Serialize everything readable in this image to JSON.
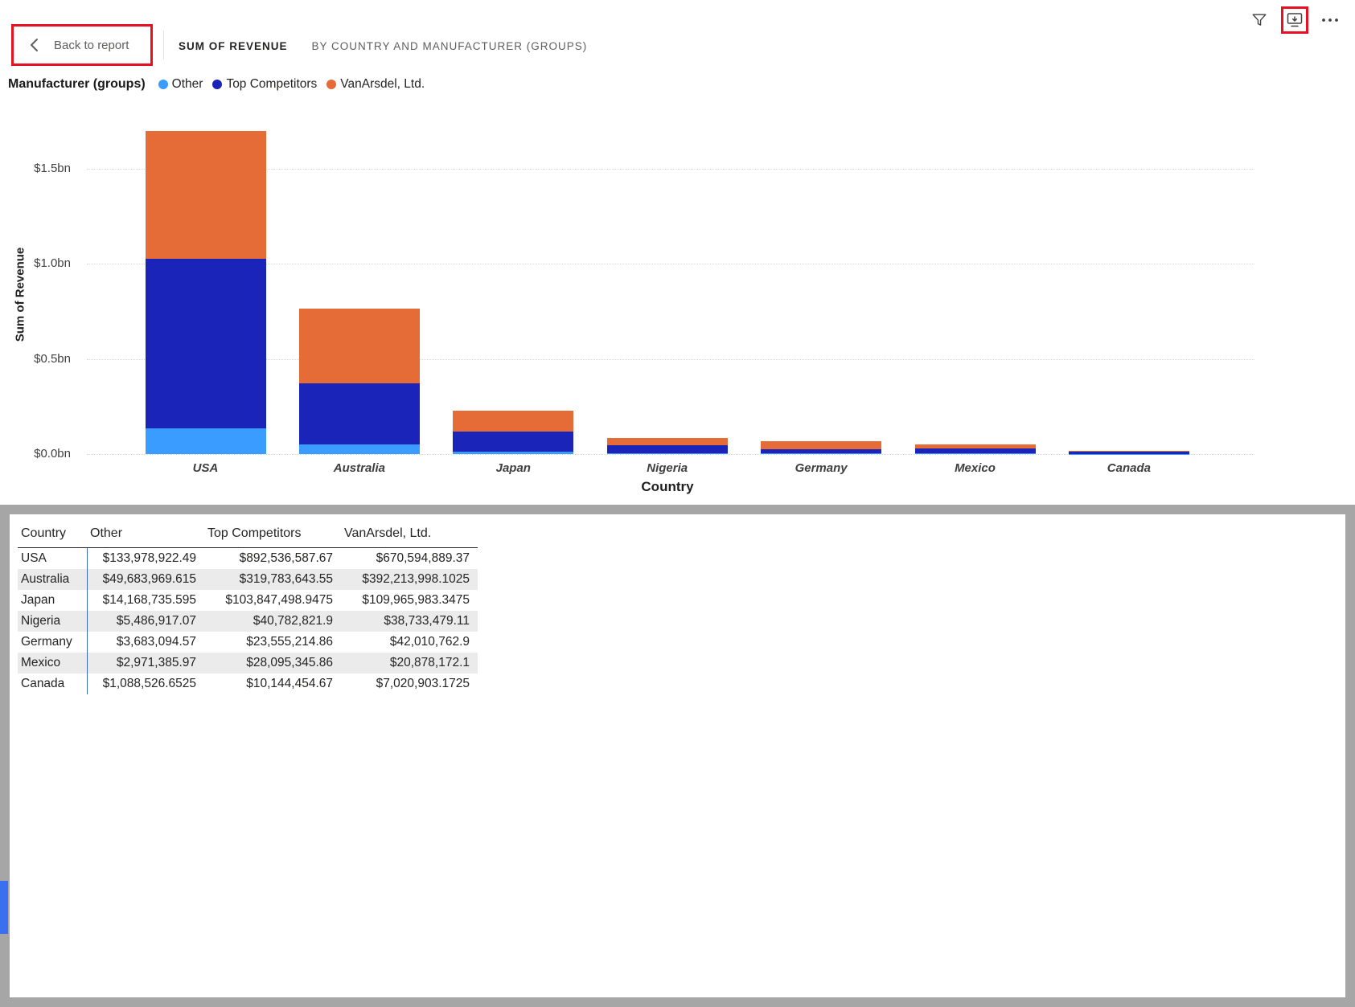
{
  "colors": {
    "annotation_red": "#E81123",
    "panel_gray": "#A6A6A6",
    "scrollbar_blue": "#3A6FF0"
  },
  "header": {
    "back_label": "Back to report",
    "title": "SUM OF REVENUE",
    "subtitle": "BY COUNTRY AND MANUFACTURER (GROUPS)"
  },
  "legend": {
    "title": "Manufacturer (groups)",
    "items": [
      {
        "label": "Other",
        "color": "#3B9CFF"
      },
      {
        "label": "Top Competitors",
        "color": "#1B24B8"
      },
      {
        "label": "VanArsdel, Ltd.",
        "color": "#E66C37"
      }
    ]
  },
  "chart_data": {
    "type": "bar",
    "stacked": true,
    "title": "Sum of Revenue by Country and Manufacturer (groups)",
    "xlabel": "Country",
    "ylabel": "Sum of Revenue",
    "unit": "billions USD",
    "ylim": [
      0,
      1.75
    ],
    "grid": true,
    "legend_position": "top",
    "categories": [
      "USA",
      "Australia",
      "Japan",
      "Nigeria",
      "Germany",
      "Mexico",
      "Canada"
    ],
    "series": [
      {
        "name": "Other",
        "color": "#3B9CFF",
        "values": [
          0.13398,
          0.04968,
          0.01417,
          0.00549,
          0.00368,
          0.00297,
          0.00109
        ]
      },
      {
        "name": "Top Competitors",
        "color": "#1B24B8",
        "values": [
          0.89254,
          0.31978,
          0.10385,
          0.04078,
          0.02356,
          0.0281,
          0.01014
        ]
      },
      {
        "name": "VanArsdel, Ltd.",
        "color": "#E66C37",
        "values": [
          0.67059,
          0.39221,
          0.10997,
          0.03873,
          0.04201,
          0.02088,
          0.00702
        ]
      }
    ],
    "yticks": [
      {
        "label": "$0.0bn",
        "value": 0.0
      },
      {
        "label": "$0.5bn",
        "value": 0.5
      },
      {
        "label": "$1.0bn",
        "value": 1.0
      },
      {
        "label": "$1.5bn",
        "value": 1.5
      }
    ]
  },
  "table": {
    "columns": [
      "Country",
      "Other",
      "Top Competitors",
      "VanArsdel, Ltd."
    ],
    "rows": [
      [
        "USA",
        "$133,978,922.49",
        "$892,536,587.67",
        "$670,594,889.37"
      ],
      [
        "Australia",
        "$49,683,969.615",
        "$319,783,643.55",
        "$392,213,998.1025"
      ],
      [
        "Japan",
        "$14,168,735.595",
        "$103,847,498.9475",
        "$109,965,983.3475"
      ],
      [
        "Nigeria",
        "$5,486,917.07",
        "$40,782,821.9",
        "$38,733,479.11"
      ],
      [
        "Germany",
        "$3,683,094.57",
        "$23,555,214.86",
        "$42,010,762.9"
      ],
      [
        "Mexico",
        "$2,971,385.97",
        "$28,095,345.86",
        "$20,878,172.1"
      ],
      [
        "Canada",
        "$1,088,526.6525",
        "$10,144,454.67",
        "$7,020,903.1725"
      ]
    ]
  }
}
